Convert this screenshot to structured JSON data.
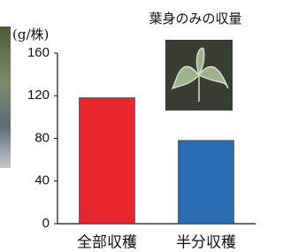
{
  "chart_data": {
    "type": "bar",
    "y_label": "(g/株)",
    "annotation": "葉身のみの収量",
    "categories": [
      "全部収穫",
      "半分収穫"
    ],
    "values": [
      118,
      78
    ],
    "colors": [
      "#e8262f",
      "#2a6db5"
    ],
    "ylim": [
      0,
      160
    ],
    "yticks": [
      0,
      40,
      80,
      120,
      160
    ]
  }
}
